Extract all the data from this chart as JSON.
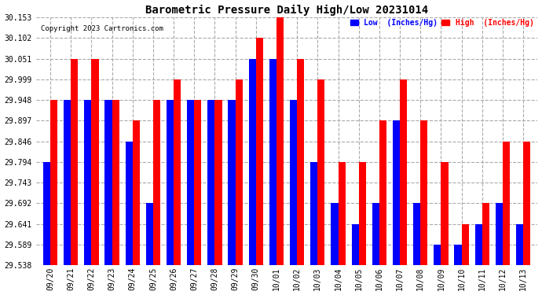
{
  "title": "Barometric Pressure Daily High/Low 20231014",
  "copyright": "Copyright 2023 Cartronics.com",
  "legend_low": "Low  (Inches/Hg)",
  "legend_high": "High  (Inches/Hg)",
  "low_color": "blue",
  "high_color": "red",
  "background_color": "#ffffff",
  "ylim": [
    29.538,
    30.153
  ],
  "yticks": [
    29.538,
    29.589,
    29.641,
    29.692,
    29.743,
    29.794,
    29.846,
    29.897,
    29.948,
    29.999,
    30.051,
    30.102,
    30.153
  ],
  "dates": [
    "09/20",
    "09/21",
    "09/22",
    "09/23",
    "09/24",
    "09/25",
    "09/26",
    "09/27",
    "09/28",
    "09/29",
    "09/30",
    "10/01",
    "10/02",
    "10/03",
    "10/04",
    "10/05",
    "10/06",
    "10/07",
    "10/08",
    "10/09",
    "10/10",
    "10/11",
    "10/12",
    "10/13"
  ],
  "high_values": [
    29.948,
    30.051,
    30.051,
    29.948,
    29.897,
    29.948,
    29.999,
    29.948,
    29.948,
    29.999,
    30.102,
    30.153,
    30.051,
    29.999,
    29.794,
    29.794,
    29.897,
    29.999,
    29.897,
    29.794,
    29.641,
    29.692,
    29.846,
    29.846
  ],
  "low_values": [
    29.794,
    29.948,
    29.948,
    29.948,
    29.846,
    29.692,
    29.948,
    29.948,
    29.948,
    29.948,
    30.051,
    30.051,
    29.948,
    29.794,
    29.692,
    29.641,
    29.692,
    29.897,
    29.692,
    29.589,
    29.589,
    29.641,
    29.692,
    29.641
  ],
  "bar_width": 0.35,
  "figsize": [
    6.9,
    3.75
  ],
  "dpi": 100
}
